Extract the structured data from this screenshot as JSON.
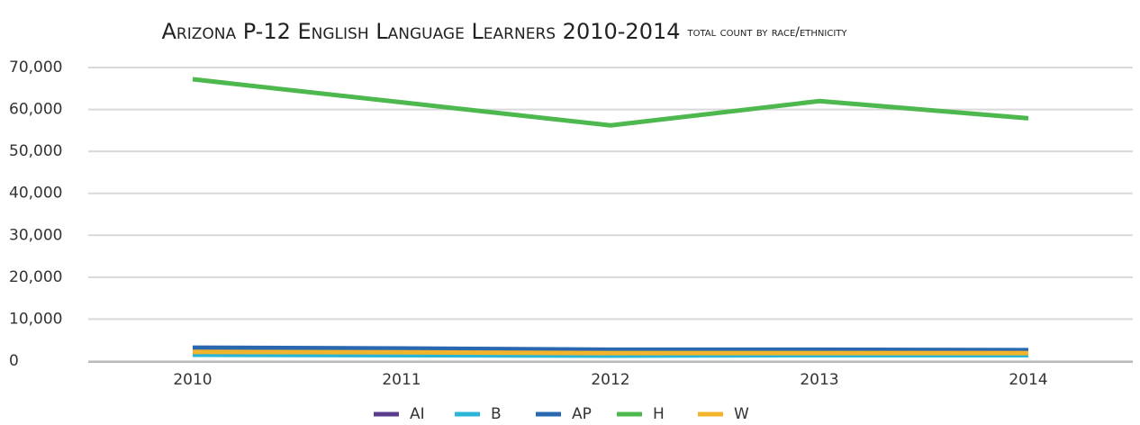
{
  "chart_data": {
    "type": "line",
    "title": "Arizona P-12 English Language Learners 2010-2014",
    "subtitle": "total count by race/ethnicity",
    "categories": [
      "2010",
      "2011",
      "2012",
      "2013",
      "2014"
    ],
    "series": [
      {
        "name": "AI",
        "color": "#5b3c8c",
        "values": [
          1800,
          1700,
          1600,
          1600,
          1600
        ]
      },
      {
        "name": "B",
        "color": "#29b5d6",
        "values": [
          1500,
          1400,
          1300,
          1400,
          1400
        ]
      },
      {
        "name": "AP",
        "color": "#2a67b1",
        "values": [
          3200,
          3000,
          2700,
          2700,
          2600
        ]
      },
      {
        "name": "H",
        "color": "#4db84e",
        "values": [
          67200,
          61700,
          56200,
          62000,
          57900
        ]
      },
      {
        "name": "W",
        "color": "#f2b42a",
        "values": [
          2200,
          2100,
          1900,
          1900,
          1900
        ]
      }
    ],
    "ylim": [
      0,
      70000
    ],
    "yticks": [
      0,
      {
        "value": 10000,
        "label": "10,000"
      },
      {
        "value": 20000,
        "label": "20,000"
      },
      {
        "value": 30000,
        "label": "30,000"
      },
      {
        "value": 40000,
        "label": "40,000"
      },
      {
        "value": 50000,
        "label": "50,000"
      },
      {
        "value": 60000,
        "label": "60,000"
      },
      {
        "value": 70000,
        "label": "70,000"
      }
    ],
    "grid": true,
    "legend": "bottom"
  }
}
